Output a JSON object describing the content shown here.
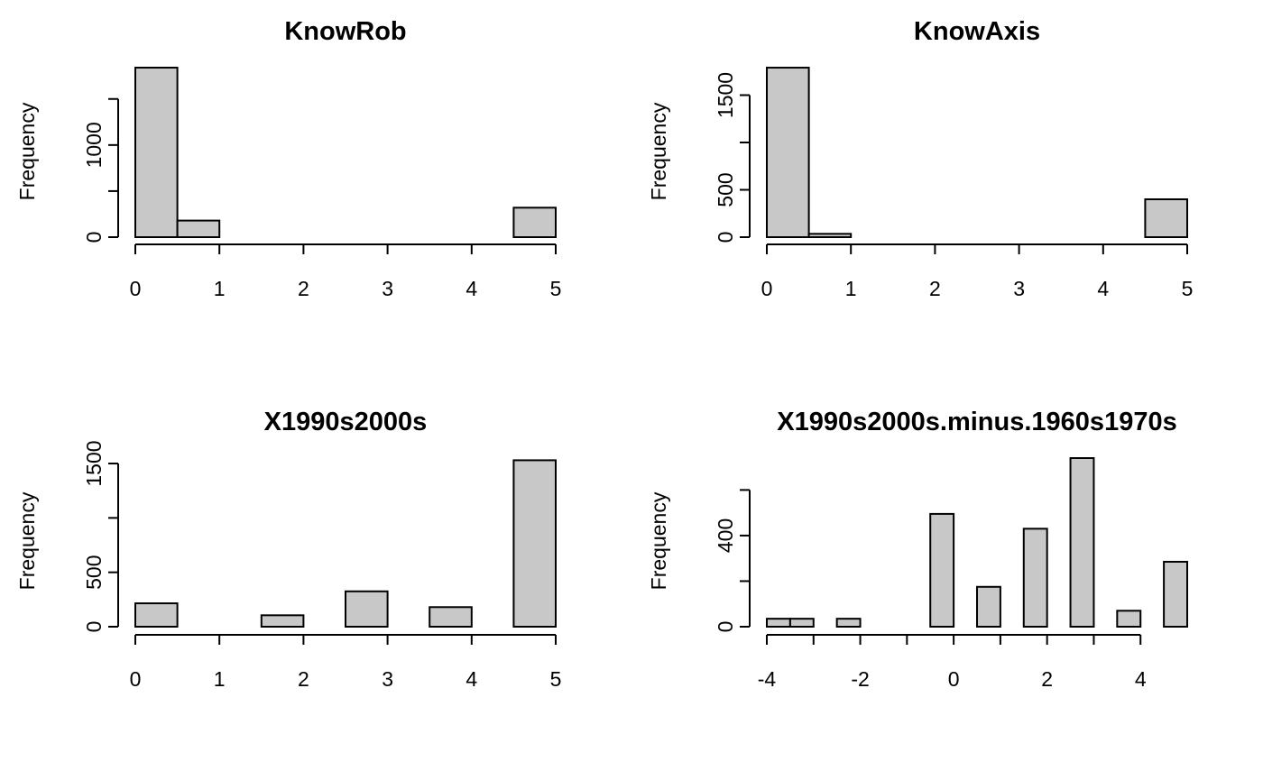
{
  "colors": {
    "bar_fill": "#c8c8c8",
    "bar_stroke": "#000000",
    "background": "#ffffff"
  },
  "chart_data": [
    {
      "type": "bar",
      "title": "KnowRob",
      "xlabel": "",
      "ylabel": "Frequency",
      "xlim": [
        0,
        5
      ],
      "ylim": [
        0,
        1850
      ],
      "x_ticks": [
        "0",
        "1",
        "2",
        "3",
        "4",
        "5"
      ],
      "y_ticks": [
        "0",
        "1000"
      ],
      "bins": [
        {
          "x0": 0.0,
          "x1": 0.5,
          "count": 1840
        },
        {
          "x0": 0.5,
          "x1": 1.0,
          "count": 180
        },
        {
          "x0": 1.0,
          "x1": 1.5,
          "count": 0
        },
        {
          "x0": 1.5,
          "x1": 2.0,
          "count": 0
        },
        {
          "x0": 2.0,
          "x1": 2.5,
          "count": 0
        },
        {
          "x0": 2.5,
          "x1": 3.0,
          "count": 0
        },
        {
          "x0": 3.0,
          "x1": 3.5,
          "count": 0
        },
        {
          "x0": 3.5,
          "x1": 4.0,
          "count": 0
        },
        {
          "x0": 4.0,
          "x1": 4.5,
          "count": 0
        },
        {
          "x0": 4.5,
          "x1": 5.0,
          "count": 320
        }
      ],
      "y_tick_values": [
        0,
        500,
        1000,
        1500
      ],
      "x_tick_values": [
        0,
        1,
        2,
        3,
        4,
        5
      ]
    },
    {
      "type": "bar",
      "title": "KnowAxis",
      "xlabel": "",
      "ylabel": "Frequency",
      "xlim": [
        0,
        5
      ],
      "ylim": [
        0,
        1800
      ],
      "x_ticks": [
        "0",
        "1",
        "2",
        "3",
        "4",
        "5"
      ],
      "y_ticks": [
        "0",
        "500",
        "1500"
      ],
      "bins": [
        {
          "x0": 0.0,
          "x1": 0.5,
          "count": 1790
        },
        {
          "x0": 0.5,
          "x1": 1.0,
          "count": 35
        },
        {
          "x0": 1.0,
          "x1": 1.5,
          "count": 0
        },
        {
          "x0": 1.5,
          "x1": 2.0,
          "count": 0
        },
        {
          "x0": 2.0,
          "x1": 2.5,
          "count": 0
        },
        {
          "x0": 2.5,
          "x1": 3.0,
          "count": 0
        },
        {
          "x0": 3.0,
          "x1": 3.5,
          "count": 0
        },
        {
          "x0": 3.5,
          "x1": 4.0,
          "count": 0
        },
        {
          "x0": 4.0,
          "x1": 4.5,
          "count": 0
        },
        {
          "x0": 4.5,
          "x1": 5.0,
          "count": 400
        }
      ],
      "y_tick_values": [
        0,
        500,
        1000,
        1500
      ],
      "x_tick_values": [
        0,
        1,
        2,
        3,
        4,
        5
      ]
    },
    {
      "type": "bar",
      "title": "X1990s2000s",
      "xlabel": "",
      "ylabel": "Frequency",
      "xlim": [
        0,
        5
      ],
      "ylim": [
        0,
        1550
      ],
      "x_ticks": [
        "0",
        "1",
        "2",
        "3",
        "4",
        "5"
      ],
      "y_ticks": [
        "0",
        "500",
        "1500"
      ],
      "bins": [
        {
          "x0": 0.0,
          "x1": 0.5,
          "count": 215
        },
        {
          "x0": 0.5,
          "x1": 1.0,
          "count": 0
        },
        {
          "x0": 1.0,
          "x1": 1.5,
          "count": 0
        },
        {
          "x0": 1.5,
          "x1": 2.0,
          "count": 105
        },
        {
          "x0": 2.0,
          "x1": 2.5,
          "count": 0
        },
        {
          "x0": 2.5,
          "x1": 3.0,
          "count": 325
        },
        {
          "x0": 3.0,
          "x1": 3.5,
          "count": 0
        },
        {
          "x0": 3.5,
          "x1": 4.0,
          "count": 180
        },
        {
          "x0": 4.0,
          "x1": 4.5,
          "count": 0
        },
        {
          "x0": 4.5,
          "x1": 5.0,
          "count": 1530
        }
      ],
      "y_tick_values": [
        0,
        500,
        1000,
        1500
      ],
      "x_tick_values": [
        0,
        1,
        2,
        3,
        4,
        5
      ]
    },
    {
      "type": "bar",
      "title": "X1990s2000s.minus.1960s1970s",
      "xlabel": "",
      "ylabel": "Frequency",
      "xlim": [
        -4,
        5
      ],
      "ylim": [
        0,
        740
      ],
      "x_ticks": [
        "-4",
        "-2",
        "0",
        "2",
        "4"
      ],
      "y_ticks": [
        "0",
        "400"
      ],
      "bins": [
        {
          "x0": -4.0,
          "x1": -3.5,
          "count": 35
        },
        {
          "x0": -3.5,
          "x1": -3.0,
          "count": 35
        },
        {
          "x0": -2.5,
          "x1": -2.0,
          "count": 35
        },
        {
          "x0": -0.5,
          "x1": 0.0,
          "count": 495
        },
        {
          "x0": 0.5,
          "x1": 1.0,
          "count": 175
        },
        {
          "x0": 1.5,
          "x1": 2.0,
          "count": 430
        },
        {
          "x0": 2.5,
          "x1": 3.0,
          "count": 740
        },
        {
          "x0": 3.5,
          "x1": 4.0,
          "count": 70
        },
        {
          "x0": 4.5,
          "x1": 5.0,
          "count": 285
        }
      ],
      "y_tick_values": [
        0,
        200,
        400,
        600
      ],
      "x_tick_values": [
        -4,
        -3,
        -2,
        -1,
        0,
        1,
        2,
        3,
        4
      ]
    }
  ]
}
